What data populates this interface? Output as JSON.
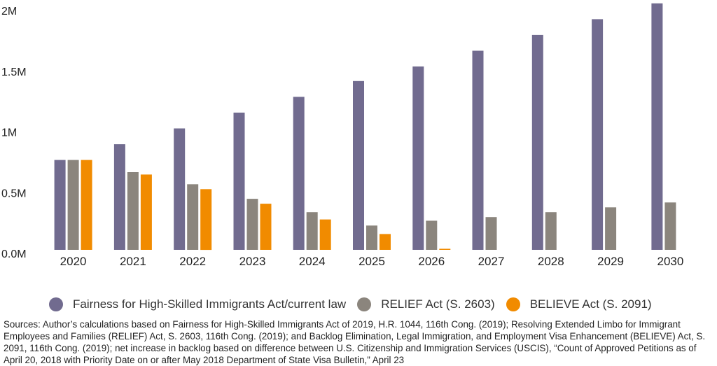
{
  "chart_data": {
    "type": "bar",
    "categories": [
      "2020",
      "2021",
      "2022",
      "2023",
      "2024",
      "2025",
      "2026",
      "2027",
      "2028",
      "2029",
      "2030"
    ],
    "series": [
      {
        "name": "Fairness for High-Skilled Immigrants Act/current law",
        "color": "#716b8f",
        "values": [
          740000,
          870000,
          1000000,
          1130000,
          1260000,
          1390000,
          1510000,
          1640000,
          1770000,
          1900000,
          2030000
        ]
      },
      {
        "name": "RELIEF Act (S. 2603)",
        "color": "#8b857d",
        "values": [
          740000,
          640000,
          540000,
          420000,
          310000,
          200000,
          240000,
          270000,
          310000,
          350000,
          390000
        ]
      },
      {
        "name": "BELIEVE Act (S. 2091)",
        "color": "#f18b00",
        "values": [
          740000,
          620000,
          500000,
          380000,
          250000,
          130000,
          5000,
          null,
          null,
          null,
          null
        ]
      }
    ],
    "yticks": [
      {
        "value": 0,
        "label": "0.0M"
      },
      {
        "value": 500000,
        "label": "0.5M"
      },
      {
        "value": 1000000,
        "label": "1M"
      },
      {
        "value": 1500000,
        "label": "1.5M"
      },
      {
        "value": 2000000,
        "label": "2M"
      }
    ],
    "ylim": [
      0,
      2000000
    ],
    "grid": false,
    "legend_position": "bottom"
  },
  "legend": {
    "items": [
      {
        "label": "Fairness for High-Skilled Immigrants Act/current law",
        "color": "#716b8f"
      },
      {
        "label": "RELIEF Act (S. 2603)",
        "color": "#8b857d"
      },
      {
        "label": "BELIEVE Act (S. 2091)",
        "color": "#f18b00"
      }
    ]
  },
  "source_note": "Sources: Author’s calculations based on Fairness for High-Skilled Immigrants Act of 2019, H.R. 1044, 116th Cong. (2019); Resolving Extended Limbo for Immigrant Employees and Families (RELIEF) Act, S. 2603, 116th Cong. (2019); and Backlog Elimination, Legal Immigration, and Employment Visa Enhancement (BELIEVE) Act, S. 2091, 116th Cong. (2019); net increase in backlog based on difference between U.S. Citizenship and Immigration Services (USCIS), “Count of Approved Petitions as of April 20, 2018 with Priority Date on or after May 2018 Department of State Visa Bulletin,” April 23"
}
